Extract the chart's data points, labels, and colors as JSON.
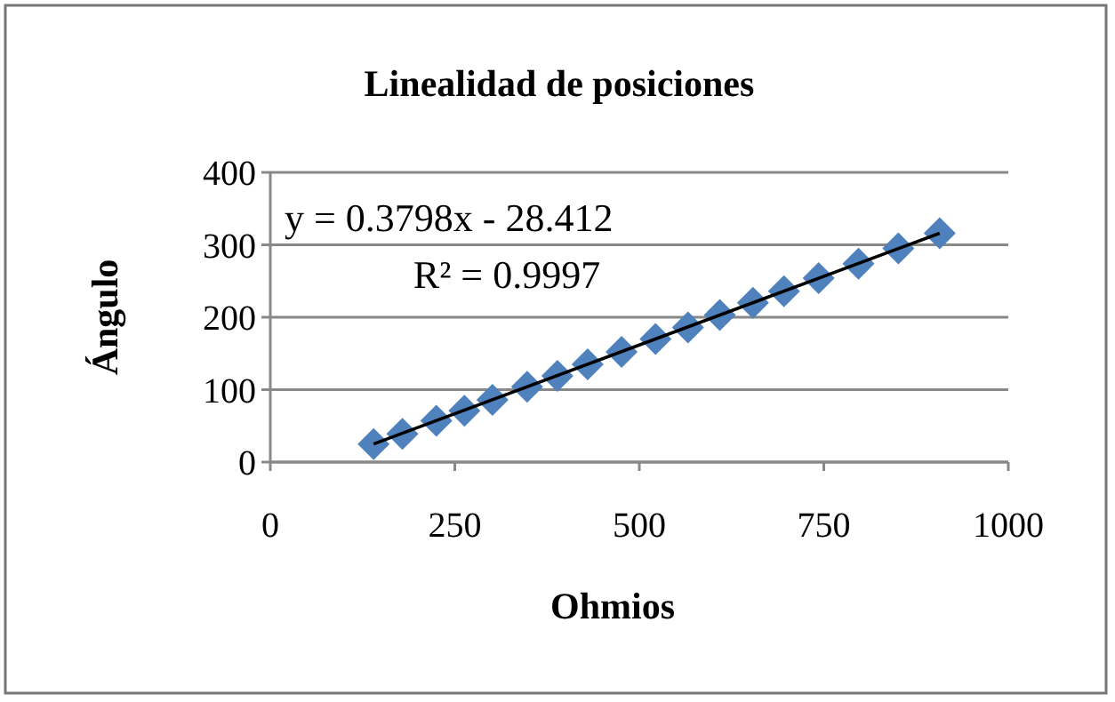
{
  "chart_data": {
    "type": "scatter",
    "title": "Linealidad de posiciones",
    "xlabel": "Ohmios",
    "ylabel": "Ángulo",
    "xlim": [
      0,
      1000
    ],
    "xticks": [
      0,
      250,
      500,
      750,
      1000
    ],
    "ylim": [
      0,
      400
    ],
    "yticks": [
      0,
      100,
      200,
      300,
      400
    ],
    "grid": "y",
    "series": [
      {
        "color": "#4f81bd",
        "marker": "diamond",
        "x": [
          140,
          179,
          225,
          263,
          301,
          348,
          389,
          430,
          476,
          522,
          566,
          609,
          654,
          696,
          743,
          797,
          851,
          907
        ],
        "values": [
          25,
          39,
          57,
          71,
          86,
          104,
          119,
          135,
          152,
          170,
          186,
          203,
          220,
          236,
          254,
          274,
          295,
          316
        ]
      },
      {
        "type": "line",
        "color": "#000000",
        "x": [
          140,
          907
        ],
        "values": [
          25,
          316
        ]
      }
    ],
    "annotations": [
      "y = 0.3798x - 28.412",
      "R² = 0.9997"
    ]
  }
}
